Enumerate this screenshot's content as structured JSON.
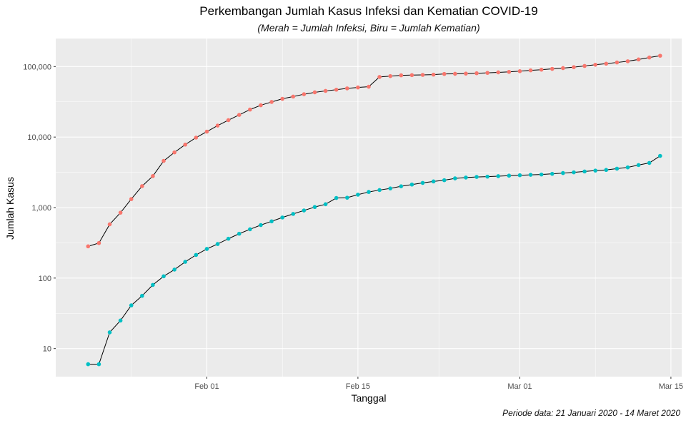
{
  "chart_data": {
    "type": "line",
    "title": "Perkembangan Jumlah Kasus Infeksi dan Kematian COVID-19",
    "subtitle": "(Merah = Jumlah Infeksi, Biru = Jumlah Kematian)",
    "caption": "Periode data: 21 Januari 2020 - 14 Maret 2020",
    "xlabel": "Tanggal",
    "ylabel": "Jumlah Kasus",
    "y_scale": "log10",
    "ylim": [
      4,
      250000
    ],
    "xlim": [
      "2020-01-18",
      "2020-03-16"
    ],
    "x_ticks": [
      {
        "date": "2020-02-01",
        "label": "Feb 01"
      },
      {
        "date": "2020-02-15",
        "label": "Feb 15"
      },
      {
        "date": "2020-03-01",
        "label": "Mar 01"
      },
      {
        "date": "2020-03-15",
        "label": "Mar 15"
      }
    ],
    "y_ticks": [
      {
        "value": 10,
        "label": "10"
      },
      {
        "value": 100,
        "label": "100"
      },
      {
        "value": 1000,
        "label": "1,000"
      },
      {
        "value": 10000,
        "label": "10,000"
      },
      {
        "value": 100000,
        "label": "100,000"
      }
    ],
    "grid": true,
    "legend": "none",
    "x": [
      "2020-01-21",
      "2020-01-22",
      "2020-01-23",
      "2020-01-24",
      "2020-01-25",
      "2020-01-26",
      "2020-01-27",
      "2020-01-28",
      "2020-01-29",
      "2020-01-30",
      "2020-01-31",
      "2020-02-01",
      "2020-02-02",
      "2020-02-03",
      "2020-02-04",
      "2020-02-05",
      "2020-02-06",
      "2020-02-07",
      "2020-02-08",
      "2020-02-09",
      "2020-02-10",
      "2020-02-11",
      "2020-02-12",
      "2020-02-13",
      "2020-02-14",
      "2020-02-15",
      "2020-02-16",
      "2020-02-17",
      "2020-02-18",
      "2020-02-19",
      "2020-02-20",
      "2020-02-21",
      "2020-02-22",
      "2020-02-23",
      "2020-02-24",
      "2020-02-25",
      "2020-02-26",
      "2020-02-27",
      "2020-02-28",
      "2020-02-29",
      "2020-03-01",
      "2020-03-02",
      "2020-03-03",
      "2020-03-04",
      "2020-03-05",
      "2020-03-06",
      "2020-03-07",
      "2020-03-08",
      "2020-03-09",
      "2020-03-10",
      "2020-03-11",
      "2020-03-12",
      "2020-03-13",
      "2020-03-14"
    ],
    "series": [
      {
        "color": "#F8766D",
        "values": [
          282,
          314,
          579,
          846,
          1320,
          2014,
          2798,
          4593,
          6065,
          7818,
          9826,
          11953,
          14557,
          17391,
          20630,
          24554,
          28276,
          31481,
          34886,
          37558,
          40554,
          43103,
          45171,
          46997,
          49053,
          50580,
          51857,
          71226,
          73260,
          75138,
          75641,
          76199,
          76843,
          78599,
          78985,
          79570,
          80415,
          81397,
          82756,
          84124,
          86013,
          88371,
          90309,
          92844,
          95124,
          98192,
          102050,
          106099,
          109991,
          114381,
          118948,
          126214,
          134576,
          142539
        ]
      },
      {
        "color": "#00BFC4",
        "values": [
          6,
          6,
          17,
          25,
          41,
          56,
          80,
          106,
          132,
          170,
          213,
          259,
          304,
          362,
          426,
          492,
          565,
          638,
          724,
          813,
          910,
          1018,
          1115,
          1368,
          1381,
          1524,
          1666,
          1772,
          1870,
          2006,
          2121,
          2239,
          2348,
          2445,
          2595,
          2666,
          2718,
          2747,
          2791,
          2838,
          2873,
          2915,
          2946,
          3012,
          3089,
          3160,
          3253,
          3348,
          3419,
          3567,
          3717,
          4011,
          4299,
          5406
        ]
      }
    ]
  }
}
